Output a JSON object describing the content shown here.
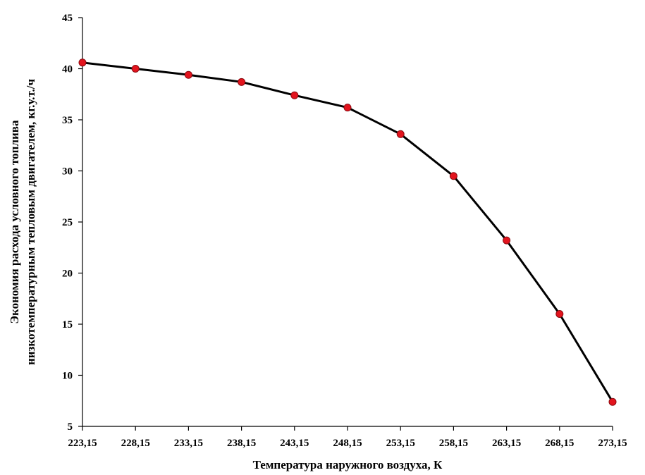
{
  "chart_data": {
    "type": "line",
    "title": "",
    "xlabel": "Температура наружного воздуха, К",
    "ylabel_lines": [
      "Экономия расхода условного топлива",
      "низкотемпературным тепловым двигателем, кг.у.т./ч"
    ],
    "x": [
      "223,15",
      "228,15",
      "233,15",
      "238,15",
      "243,15",
      "248,15",
      "253,15",
      "258,15",
      "263,15",
      "268,15",
      "273,15"
    ],
    "series": [
      {
        "values": [
          40.6,
          40.0,
          39.4,
          38.7,
          37.4,
          36.2,
          33.6,
          29.5,
          23.2,
          16.0,
          7.4
        ],
        "line_color": "#000000",
        "marker_color": "#e3141e",
        "marker_edge_color": "#8b0a10"
      }
    ],
    "ylim": [
      5,
      45
    ],
    "yticks": [
      5,
      10,
      15,
      20,
      25,
      30,
      35,
      40,
      45
    ],
    "grid": false,
    "legend": "none"
  }
}
